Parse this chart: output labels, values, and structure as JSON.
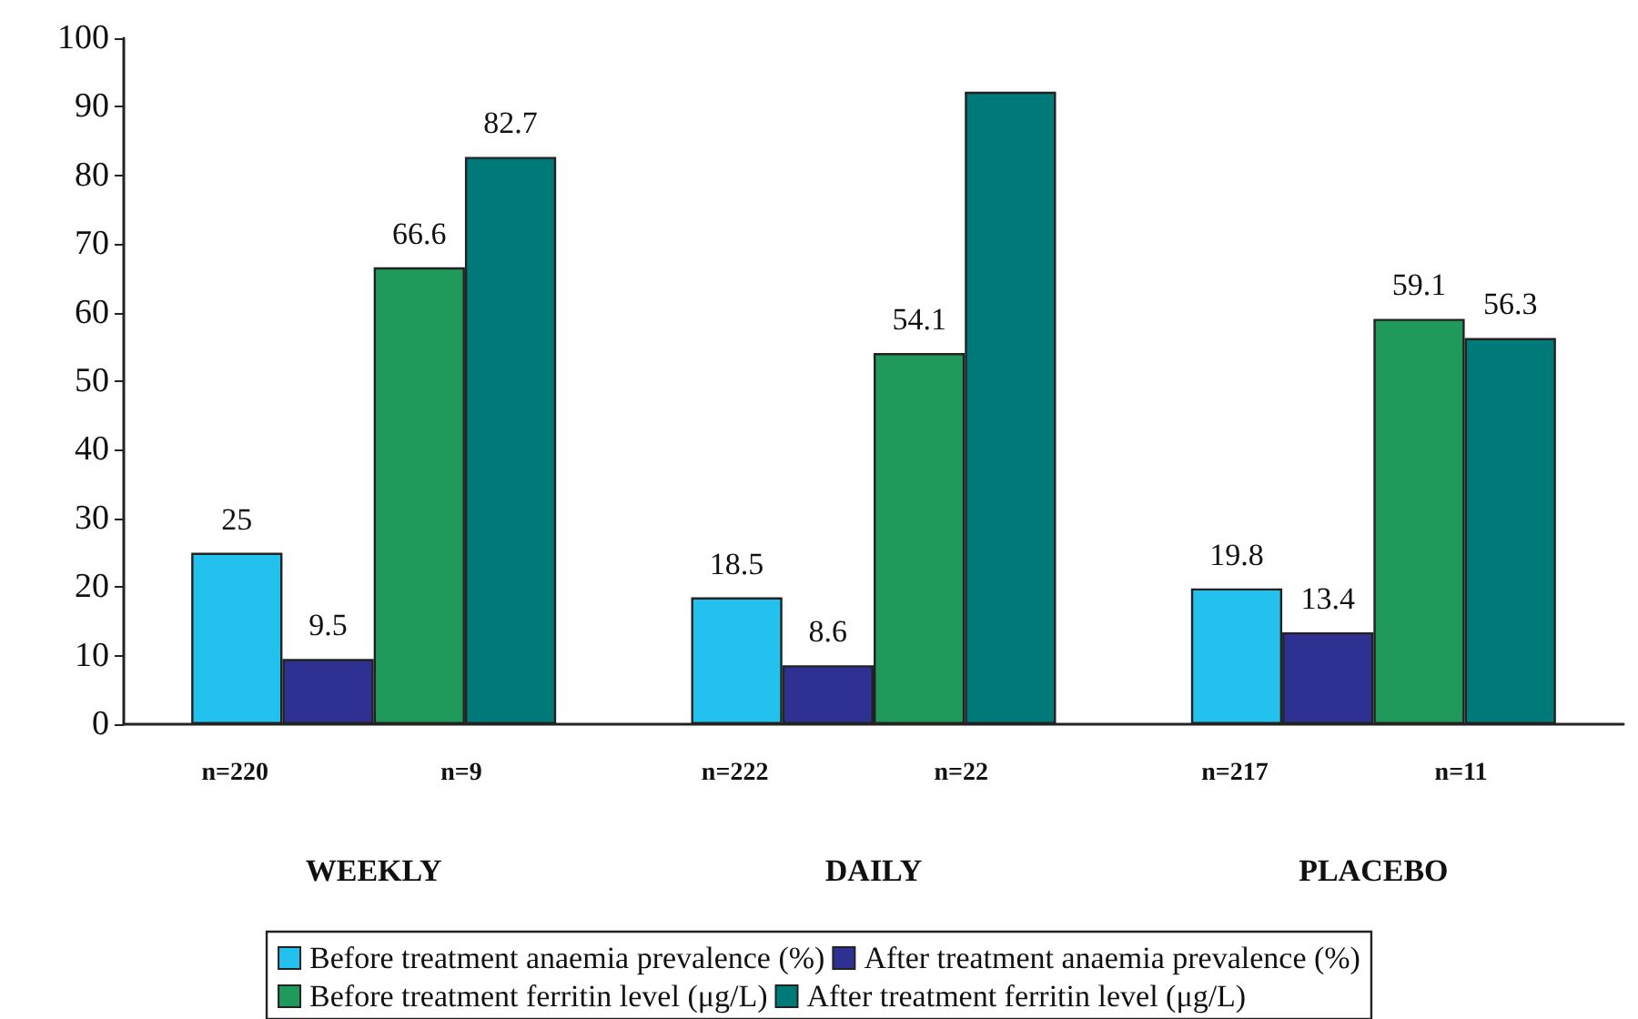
{
  "chart_data": {
    "type": "bar",
    "categories": [
      "WEEKLY",
      "DAILY",
      "PLACEBO"
    ],
    "series": [
      {
        "name": "Before treatment anaemia prevalence (%)",
        "color": "#22c1ee",
        "values": [
          25,
          18.5,
          19.8
        ],
        "value_labels": [
          "25",
          "18.5",
          "19.8"
        ]
      },
      {
        "name": "After treatment anaemia prevalence (%)",
        "color": "#2e3192",
        "values": [
          9.5,
          8.6,
          13.4
        ],
        "value_labels": [
          "9.5",
          "8.6",
          "13.4"
        ]
      },
      {
        "name": "Before treatment ferritin level (μg/L)",
        "color": "#1f9a5a",
        "values": [
          66.6,
          54.1,
          59.1
        ],
        "value_labels": [
          "66.6",
          "54.1",
          "59.1"
        ]
      },
      {
        "name": "After treatment ferritin level (μg/L)",
        "color": "#007a78",
        "values": [
          82.7,
          92.2,
          56.3
        ],
        "value_labels": [
          "82.7",
          null,
          "56.3"
        ]
      }
    ],
    "annotations": [
      "n=220",
      "n=9",
      "n=222",
      "n=22",
      "n=217",
      "n=11"
    ],
    "ylim": [
      0,
      100
    ],
    "yticks": [
      0,
      10,
      20,
      30,
      40,
      50,
      60,
      70,
      80,
      90,
      100
    ],
    "grid": false,
    "legend": "bottom"
  }
}
